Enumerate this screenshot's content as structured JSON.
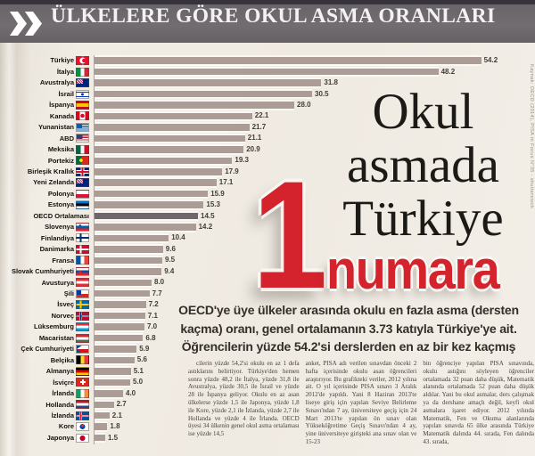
{
  "masthead": {
    "title": "ÜLKELERE GÖRE OKUL ASMA ORANLARI"
  },
  "headline": {
    "lines": [
      "Okul",
      "asmada",
      "Türkiye"
    ],
    "rank_number": "1",
    "rank_word": "numara",
    "accent_color": "#d4232c"
  },
  "subtitle": {
    "lines": [
      "OECD'ye üye ülkeler arasında okulu en fazla asma (dersten",
      "kaçma) oranı, genel ortalamanın 3.73 katıyla Türkiye'ye ait.",
      "Öğrencilerin yüzde 54.2'si derslerden en az bir kez kaçmış"
    ]
  },
  "chart_data": {
    "type": "bar",
    "orientation": "horizontal",
    "unit": "percent",
    "xlim": [
      0,
      56
    ],
    "bar_color": "#ab9c96",
    "highlight_color": "#6e686d",
    "categories": [
      "Türkiye",
      "İtalya",
      "Avustralya",
      "İsrail",
      "İspanya",
      "Kanada",
      "Yunanistan",
      "ABD",
      "Meksika",
      "Portekiz",
      "Birleşik Krallık",
      "Yeni Zelanda",
      "Polonya",
      "Estonya",
      "OECD Ortalaması",
      "Slovenya",
      "Finlandiya",
      "Danimarka",
      "Fransa",
      "Slovak Cumhuriyeti",
      "Avusturya",
      "Şili",
      "İsveç",
      "Norveç",
      "Lüksemburg",
      "Macaristan",
      "Çek Cumhuriyeti",
      "Belçika",
      "Almanya",
      "İsviçre",
      "İrlanda",
      "Hollanda",
      "İzlanda",
      "Kore",
      "Japonya"
    ],
    "values": [
      54.2,
      48.2,
      31.8,
      30.5,
      28.0,
      22.1,
      21.7,
      21.1,
      20.9,
      19.3,
      17.9,
      17.1,
      15.9,
      15.3,
      14.5,
      14.2,
      10.4,
      9.6,
      9.5,
      9.4,
      8.0,
      7.7,
      7.2,
      7.1,
      7.0,
      6.8,
      5.9,
      5.6,
      5.1,
      5.0,
      4.0,
      2.7,
      2.1,
      1.8,
      1.5
    ],
    "rows": [
      {
        "label": "Türkiye",
        "value": 54.2,
        "display": "54.2",
        "flag": "tr",
        "highlight": false
      },
      {
        "label": "İtalya",
        "value": 48.2,
        "display": "48.2",
        "flag": "it",
        "highlight": false
      },
      {
        "label": "Avustralya",
        "value": 31.8,
        "display": "31.8",
        "flag": "au",
        "highlight": false
      },
      {
        "label": "İsrail",
        "value": 30.5,
        "display": "30.5",
        "flag": "il",
        "highlight": false
      },
      {
        "label": "İspanya",
        "value": 28.0,
        "display": "28.0",
        "flag": "es",
        "highlight": false
      },
      {
        "label": "Kanada",
        "value": 22.1,
        "display": "22.1",
        "flag": "ca",
        "highlight": false
      },
      {
        "label": "Yunanistan",
        "value": 21.7,
        "display": "21.7",
        "flag": "gr",
        "highlight": false
      },
      {
        "label": "ABD",
        "value": 21.1,
        "display": "21.1",
        "flag": "us",
        "highlight": false
      },
      {
        "label": "Meksika",
        "value": 20.9,
        "display": "20.9",
        "flag": "mx",
        "highlight": false
      },
      {
        "label": "Portekiz",
        "value": 19.3,
        "display": "19.3",
        "flag": "pt",
        "highlight": false
      },
      {
        "label": "Birleşik Krallık",
        "value": 17.9,
        "display": "17.9",
        "flag": "gb",
        "highlight": false
      },
      {
        "label": "Yeni Zelanda",
        "value": 17.1,
        "display": "17.1",
        "flag": "nz",
        "highlight": false
      },
      {
        "label": "Polonya",
        "value": 15.9,
        "display": "15.9",
        "flag": "pl",
        "highlight": false
      },
      {
        "label": "Estonya",
        "value": 15.3,
        "display": "15.3",
        "flag": "ee",
        "highlight": false
      },
      {
        "label": "OECD Ortalaması",
        "value": 14.5,
        "display": "14.5",
        "flag": null,
        "highlight": true
      },
      {
        "label": "Slovenya",
        "value": 14.2,
        "display": "14.2",
        "flag": "si",
        "highlight": false
      },
      {
        "label": "Finlandiya",
        "value": 10.4,
        "display": "10.4",
        "flag": "fi",
        "highlight": false
      },
      {
        "label": "Danimarka",
        "value": 9.6,
        "display": "9.6",
        "flag": "dk",
        "highlight": false
      },
      {
        "label": "Fransa",
        "value": 9.5,
        "display": "9.5",
        "flag": "fr",
        "highlight": false
      },
      {
        "label": "Slovak Cumhuriyeti",
        "value": 9.4,
        "display": "9.4",
        "flag": "sk",
        "highlight": false
      },
      {
        "label": "Avusturya",
        "value": 8.0,
        "display": "8.0",
        "flag": "at",
        "highlight": false
      },
      {
        "label": "Şili",
        "value": 7.7,
        "display": "7.7",
        "flag": "cl",
        "highlight": false
      },
      {
        "label": "İsveç",
        "value": 7.2,
        "display": "7.2",
        "flag": "se",
        "highlight": false
      },
      {
        "label": "Norveç",
        "value": 7.1,
        "display": "7.1",
        "flag": "no",
        "highlight": false
      },
      {
        "label": "Lüksemburg",
        "value": 7.0,
        "display": "7.0",
        "flag": "lu",
        "highlight": false
      },
      {
        "label": "Macaristan",
        "value": 6.8,
        "display": "6.8",
        "flag": "hu",
        "highlight": false
      },
      {
        "label": "Çek Cumhuriyeti",
        "value": 5.9,
        "display": "5.9",
        "flag": "cz",
        "highlight": false
      },
      {
        "label": "Belçika",
        "value": 5.6,
        "display": "5.6",
        "flag": "be",
        "highlight": false
      },
      {
        "label": "Almanya",
        "value": 5.1,
        "display": "5.1",
        "flag": "de",
        "highlight": false
      },
      {
        "label": "İsviçre",
        "value": 5.0,
        "display": "5.0",
        "flag": "ch",
        "highlight": false
      },
      {
        "label": "İrlanda",
        "value": 4.0,
        "display": "4.0",
        "flag": "ie",
        "highlight": false
      },
      {
        "label": "Hollanda",
        "value": 2.7,
        "display": "2.7",
        "flag": "nl",
        "highlight": false
      },
      {
        "label": "İzlanda",
        "value": 2.1,
        "display": "2.1",
        "flag": "is",
        "highlight": false
      },
      {
        "label": "Kore",
        "value": 1.8,
        "display": "1.8",
        "flag": "kr",
        "highlight": false
      },
      {
        "label": "Japonya",
        "value": 1.5,
        "display": "1.5",
        "flag": "jp",
        "highlight": false
      }
    ]
  },
  "body_columns": [
    "cilerin yüzde 54,2'si okulu en az 1 defa astıklarını belirtiyor. Türkiye'den hemen sonra yüzde 48,2 ile İtalya, yüzde 31,8 ile Avustralya, yüzde 30,5 ile İsrail ve yüzde 28 ile İspanya geliyor. Okulu en az asan ülkelerse yüzde 1,5 ile Japonya, yüzde 1,8 ile Kore, yüzde 2,1 ile İzlanda, yüzde 2,7 ile Hollanda ve yüzde 4 ile İrlanda. OECD üyesi 34 ülkenin genel okul asma ortalaması ise yüzde 14,5",
    "anket, PISA adı verilen sınavdan önceki 2 hafta içerisinde okulu asan öğrencileri araştırıyor. Bu grafikteki veriler, 2012 yılına ait. O yıl içerisinde PISA sınavı 3 Aralık 2012'de yapıldı. Yani 8 Haziran 2013'te liseye giriş için yapılan Seviye Belirleme Sınavı'ndan 7 ay, üniversiteye geçiş için 24 Mart 2013'te yapılan ön sınav olan Yükseköğretime Geçiş Sınavı'ndan 4 ay, yine üniversiteye girişteki ana sınav olan ve 15-23",
    "bin öğrenciye yapılan PISA sınavında, okulu astığını söyleyen öğrenciler ortalamada 32 puan daha düşük, Matematik alanında ortalamada 52 puan daha düşük aldılar. Yani bu okul asmalar, ders çalışmak ya da dershane amaçlı değil, keyfi okul asmalara işaret ediyor. 2012 yılında Matematik, Fen ve Okuma alanlarında yapılan sınavda 65 ülke arasında Türkiye Matematik dalında 44. sırada, Fen dalında 43. sırada,"
  ],
  "credit": "Kaynak: OECD (2014), PISA in Focus N°35 - shutterstock",
  "colors": {
    "accent_red": "#d4232c",
    "masthead_bg": "#6c676b",
    "page_bg": "#efeae2",
    "bar": "#ab9c96",
    "oecd_bar": "#6e686d"
  }
}
